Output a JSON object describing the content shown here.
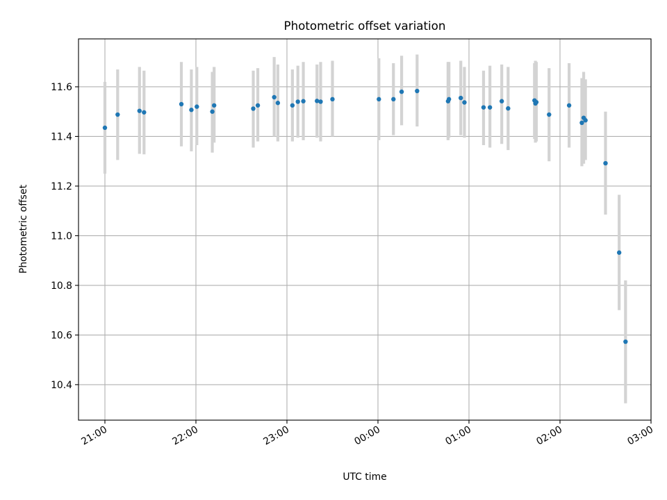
{
  "chart_data": {
    "type": "scatter",
    "title": "Photometric offset variation",
    "xlabel": "UTC time",
    "ylabel": "Photometric offset",
    "x_axis": "datetime (UTC, hours after 21:00 on the first night)",
    "xlim": [
      -0.29,
      6.0
    ],
    "ylim": [
      10.257,
      11.793
    ],
    "xtick_labels": [
      "21:00",
      "22:00",
      "23:00",
      "00:00",
      "01:00",
      "02:00",
      "03:00"
    ],
    "xtick_values": [
      0,
      1,
      2,
      3,
      4,
      5,
      6
    ],
    "ytick_labels": [
      "10.4",
      "10.6",
      "10.8",
      "11.0",
      "11.2",
      "11.4",
      "11.6"
    ],
    "ytick_values": [
      10.4,
      10.6,
      10.8,
      11.0,
      11.2,
      11.4,
      11.6
    ],
    "grid": true,
    "colors": {
      "points": "#1f77b4",
      "errorbars": "#d3d3d3",
      "grid": "#b0b0b0"
    },
    "series": [
      {
        "x": [
          0.0,
          0.14,
          0.38,
          0.43,
          0.84,
          0.95,
          1.01,
          1.18,
          1.2,
          1.63,
          1.68,
          1.86,
          1.9,
          2.06,
          2.12,
          2.18,
          2.33,
          2.37,
          2.5,
          3.01,
          3.17,
          3.26,
          3.43,
          3.77,
          3.78,
          3.91,
          3.95,
          4.16,
          4.23,
          4.36,
          4.43,
          4.72,
          4.73,
          4.74,
          4.88,
          5.1,
          5.24,
          5.26,
          5.28,
          5.5,
          5.65,
          5.72
        ],
        "y": [
          11.435,
          11.488,
          11.503,
          11.497,
          11.53,
          11.507,
          11.52,
          11.5,
          11.525,
          11.512,
          11.525,
          11.558,
          11.535,
          11.525,
          11.54,
          11.542,
          11.543,
          11.54,
          11.55,
          11.55,
          11.55,
          11.58,
          11.583,
          11.542,
          11.55,
          11.555,
          11.537,
          11.517,
          11.517,
          11.542,
          11.513,
          11.545,
          11.533,
          11.538,
          11.488,
          11.525,
          11.455,
          11.475,
          11.465,
          11.292,
          10.932,
          10.573
        ],
        "yerr_low": [
          11.25,
          11.305,
          11.33,
          11.328,
          11.36,
          11.34,
          11.365,
          11.335,
          11.375,
          11.355,
          11.38,
          11.4,
          11.38,
          11.38,
          11.395,
          11.385,
          11.395,
          11.38,
          11.4,
          11.385,
          11.405,
          11.445,
          11.44,
          11.385,
          11.395,
          11.405,
          11.395,
          11.365,
          11.355,
          11.37,
          11.345,
          11.39,
          11.375,
          11.38,
          11.3,
          11.355,
          11.28,
          11.29,
          11.305,
          11.085,
          10.7,
          10.325
        ],
        "yerr_high": [
          11.62,
          11.67,
          11.68,
          11.665,
          11.7,
          11.67,
          11.68,
          11.66,
          11.68,
          11.665,
          11.675,
          11.72,
          11.69,
          11.67,
          11.685,
          11.7,
          11.69,
          11.7,
          11.705,
          11.715,
          11.695,
          11.725,
          11.73,
          11.7,
          11.7,
          11.705,
          11.68,
          11.665,
          11.685,
          11.69,
          11.68,
          11.695,
          11.705,
          11.7,
          11.675,
          11.695,
          11.635,
          11.66,
          11.63,
          11.5,
          11.165,
          10.82
        ]
      }
    ]
  }
}
